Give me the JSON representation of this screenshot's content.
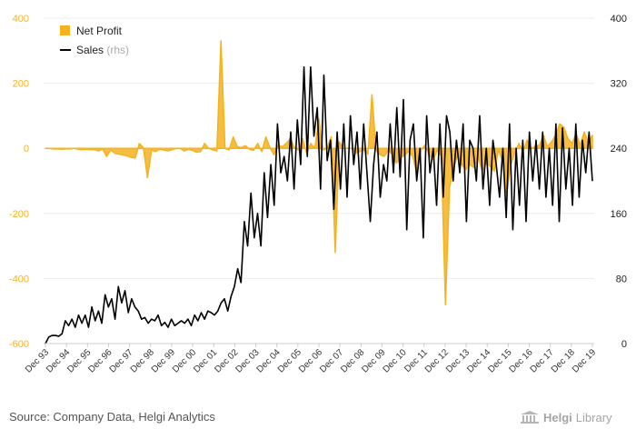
{
  "chart_data": {
    "type": "area",
    "title": "",
    "y_left": {
      "ticks": [
        "400",
        "200",
        "0",
        "-200",
        "-400",
        "-600"
      ],
      "min": -600,
      "max": 400
    },
    "y_right": {
      "ticks": [
        "400",
        "320",
        "240",
        "160",
        "80",
        "0"
      ],
      "min": 0,
      "max": 400
    },
    "x_ticks": [
      "Dec 93",
      "Dec 94",
      "Dec 95",
      "Dec 96",
      "Dec 97",
      "Dec 98",
      "Dec 99",
      "Dec 00",
      "Dec 01",
      "Dec 02",
      "Dec 03",
      "Dec 04",
      "Dec 05",
      "Dec 06",
      "Dec 07",
      "Dec 08",
      "Dec 09",
      "Dec 10",
      "Dec 11",
      "Dec 12",
      "Dec 13",
      "Dec 14",
      "Dec 15",
      "Dec 16",
      "Dec 17",
      "Dec 18",
      "Dec 19"
    ],
    "x_start": 1993.917,
    "x_step": 0.25,
    "legend": {
      "position": "top-left",
      "items": [
        {
          "label": "Net Profit",
          "suffix": "",
          "color": "#f5b21e"
        },
        {
          "label": "Sales",
          "suffix": "(rhs)",
          "color": "#000000"
        }
      ]
    },
    "series": [
      {
        "name": "Net Profit",
        "axis": "left",
        "type": "area",
        "color": "#f5b21e",
        "values": [
          0,
          0,
          -2,
          -2,
          -3,
          -2,
          -2,
          0,
          -3,
          -4,
          -3,
          -4,
          -4,
          -8,
          -2,
          -25,
          -5,
          -15,
          -18,
          -20,
          -23,
          -28,
          -30,
          15,
          2,
          -90,
          -5,
          -10,
          -3,
          -5,
          -8,
          -4,
          -1,
          0,
          -8,
          -3,
          -6,
          -12,
          -10,
          15,
          0,
          -5,
          -8,
          330,
          0,
          -5,
          35,
          5,
          2,
          8,
          -3,
          -6,
          15,
          -10,
          35,
          2,
          -20,
          10,
          5,
          15,
          30,
          3,
          -5,
          30,
          -15,
          15,
          0,
          90,
          -5,
          0,
          35,
          -320,
          20,
          0,
          0,
          0,
          -15,
          -10,
          -5,
          -18,
          165,
          -5,
          -20,
          -25,
          -5,
          -20,
          -45,
          -30,
          -20,
          -10,
          -25,
          -80,
          -5,
          10,
          -20,
          -35,
          -5,
          -25,
          -480,
          -120,
          -60,
          -20,
          -50,
          -65,
          -50,
          -60,
          -25,
          -70,
          -45,
          -55,
          -70,
          -5,
          -40,
          -140,
          -50,
          -15,
          15,
          -10,
          25,
          0,
          5,
          10,
          40,
          5,
          20,
          40,
          75,
          65,
          30,
          15,
          45,
          10,
          50,
          20,
          40
        ]
      },
      {
        "name": "Sales",
        "axis": "right",
        "type": "line",
        "color": "#000000",
        "values": [
          0,
          8,
          10,
          10,
          9,
          12,
          28,
          22,
          30,
          20,
          35,
          25,
          35,
          20,
          45,
          28,
          40,
          25,
          60,
          45,
          55,
          30,
          70,
          50,
          65,
          38,
          55,
          45,
          40,
          30,
          32,
          25,
          30,
          28,
          35,
          22,
          26,
          20,
          30,
          22,
          25,
          28,
          25,
          30,
          22,
          35,
          28,
          38,
          30,
          40,
          38,
          35,
          40,
          50,
          55,
          40,
          58,
          70,
          92,
          75,
          150,
          120,
          185,
          130,
          160,
          120,
          210,
          155,
          220,
          170,
          270,
          210,
          230,
          200,
          260,
          190,
          275,
          220,
          340,
          230,
          340,
          255,
          290,
          190,
          330,
          225,
          250,
          165,
          260,
          190,
          270,
          180,
          280,
          220,
          260,
          190,
          270,
          210,
          150,
          220,
          260,
          180,
          220,
          200,
          270,
          210,
          290,
          205,
          300,
          140,
          250,
          270,
          200,
          240,
          130,
          280,
          210,
          240,
          170,
          270,
          180,
          280,
          260,
          200,
          250,
          210,
          270,
          150,
          250,
          240,
          200,
          280,
          190,
          240,
          170,
          250,
          220,
          180,
          240,
          155,
          270,
          140,
          240,
          170,
          250,
          150,
          260,
          200,
          250,
          190,
          260,
          180,
          240,
          170,
          270,
          150,
          265,
          190,
          240,
          170,
          270,
          180,
          250,
          210,
          260,
          200
        ]
      }
    ]
  },
  "footer": {
    "source": "Source: Company Data, Helgi Analytics",
    "logo_strong": "Helgi",
    "logo_rest": "Library"
  }
}
